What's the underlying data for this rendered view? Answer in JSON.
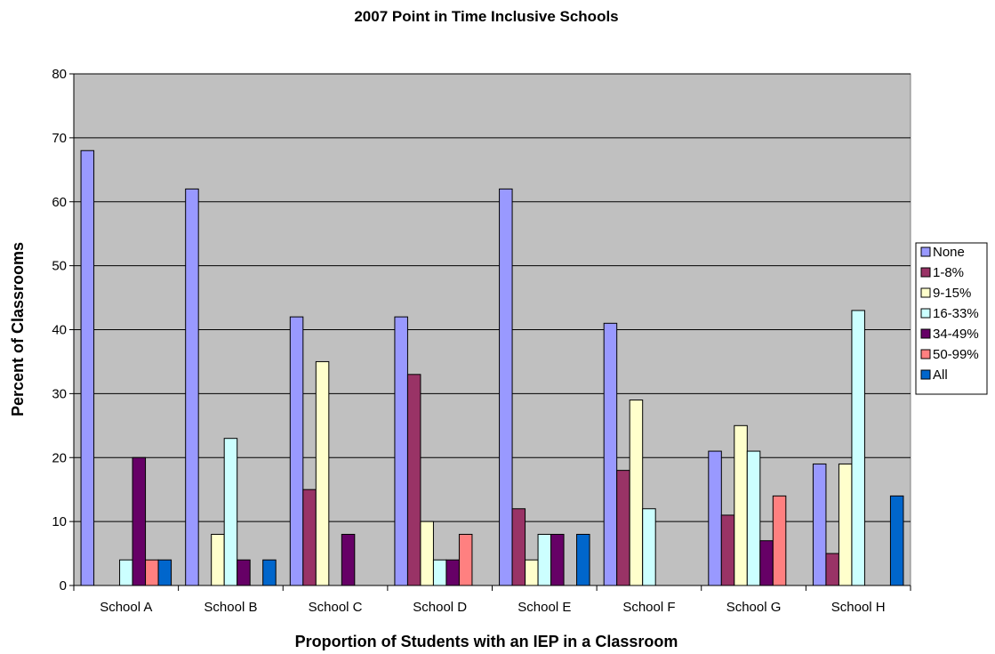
{
  "chart_data": {
    "type": "bar",
    "title": "2007 Point in Time Inclusive Schools",
    "xlabel": "Proportion of Students with an IEP in a Classroom",
    "ylabel": "Percent of Classrooms",
    "ylim": [
      0,
      80
    ],
    "yticks": [
      "0",
      "10",
      "20",
      "30",
      "40",
      "50",
      "60",
      "70",
      "80"
    ],
    "grid": true,
    "legend_position": "right",
    "plot_background": "#c0c0c0",
    "categories": [
      "School A",
      "School B",
      "School C",
      "School D",
      "School E",
      "School F",
      "School G",
      "School H"
    ],
    "series": [
      {
        "name": "None",
        "color": "#9999ff",
        "values": [
          68,
          62,
          42,
          42,
          62,
          41,
          21,
          19
        ]
      },
      {
        "name": "1-8%",
        "color": "#993366",
        "values": [
          0,
          0,
          15,
          33,
          12,
          18,
          11,
          5
        ]
      },
      {
        "name": "9-15%",
        "color": "#ffffcc",
        "values": [
          0,
          8,
          35,
          10,
          4,
          29,
          25,
          19
        ]
      },
      {
        "name": "16-33%",
        "color": "#ccffff",
        "values": [
          4,
          23,
          0,
          4,
          8,
          12,
          21,
          43
        ]
      },
      {
        "name": "34-49%",
        "color": "#660066",
        "values": [
          20,
          4,
          8,
          4,
          8,
          0,
          7,
          0
        ]
      },
      {
        "name": "50-99%",
        "color": "#ff8080",
        "values": [
          4,
          0,
          0,
          8,
          0,
          0,
          14,
          0
        ]
      },
      {
        "name": "All",
        "color": "#0066cc",
        "values": [
          4,
          4,
          0,
          0,
          8,
          0,
          0,
          14
        ]
      }
    ]
  }
}
